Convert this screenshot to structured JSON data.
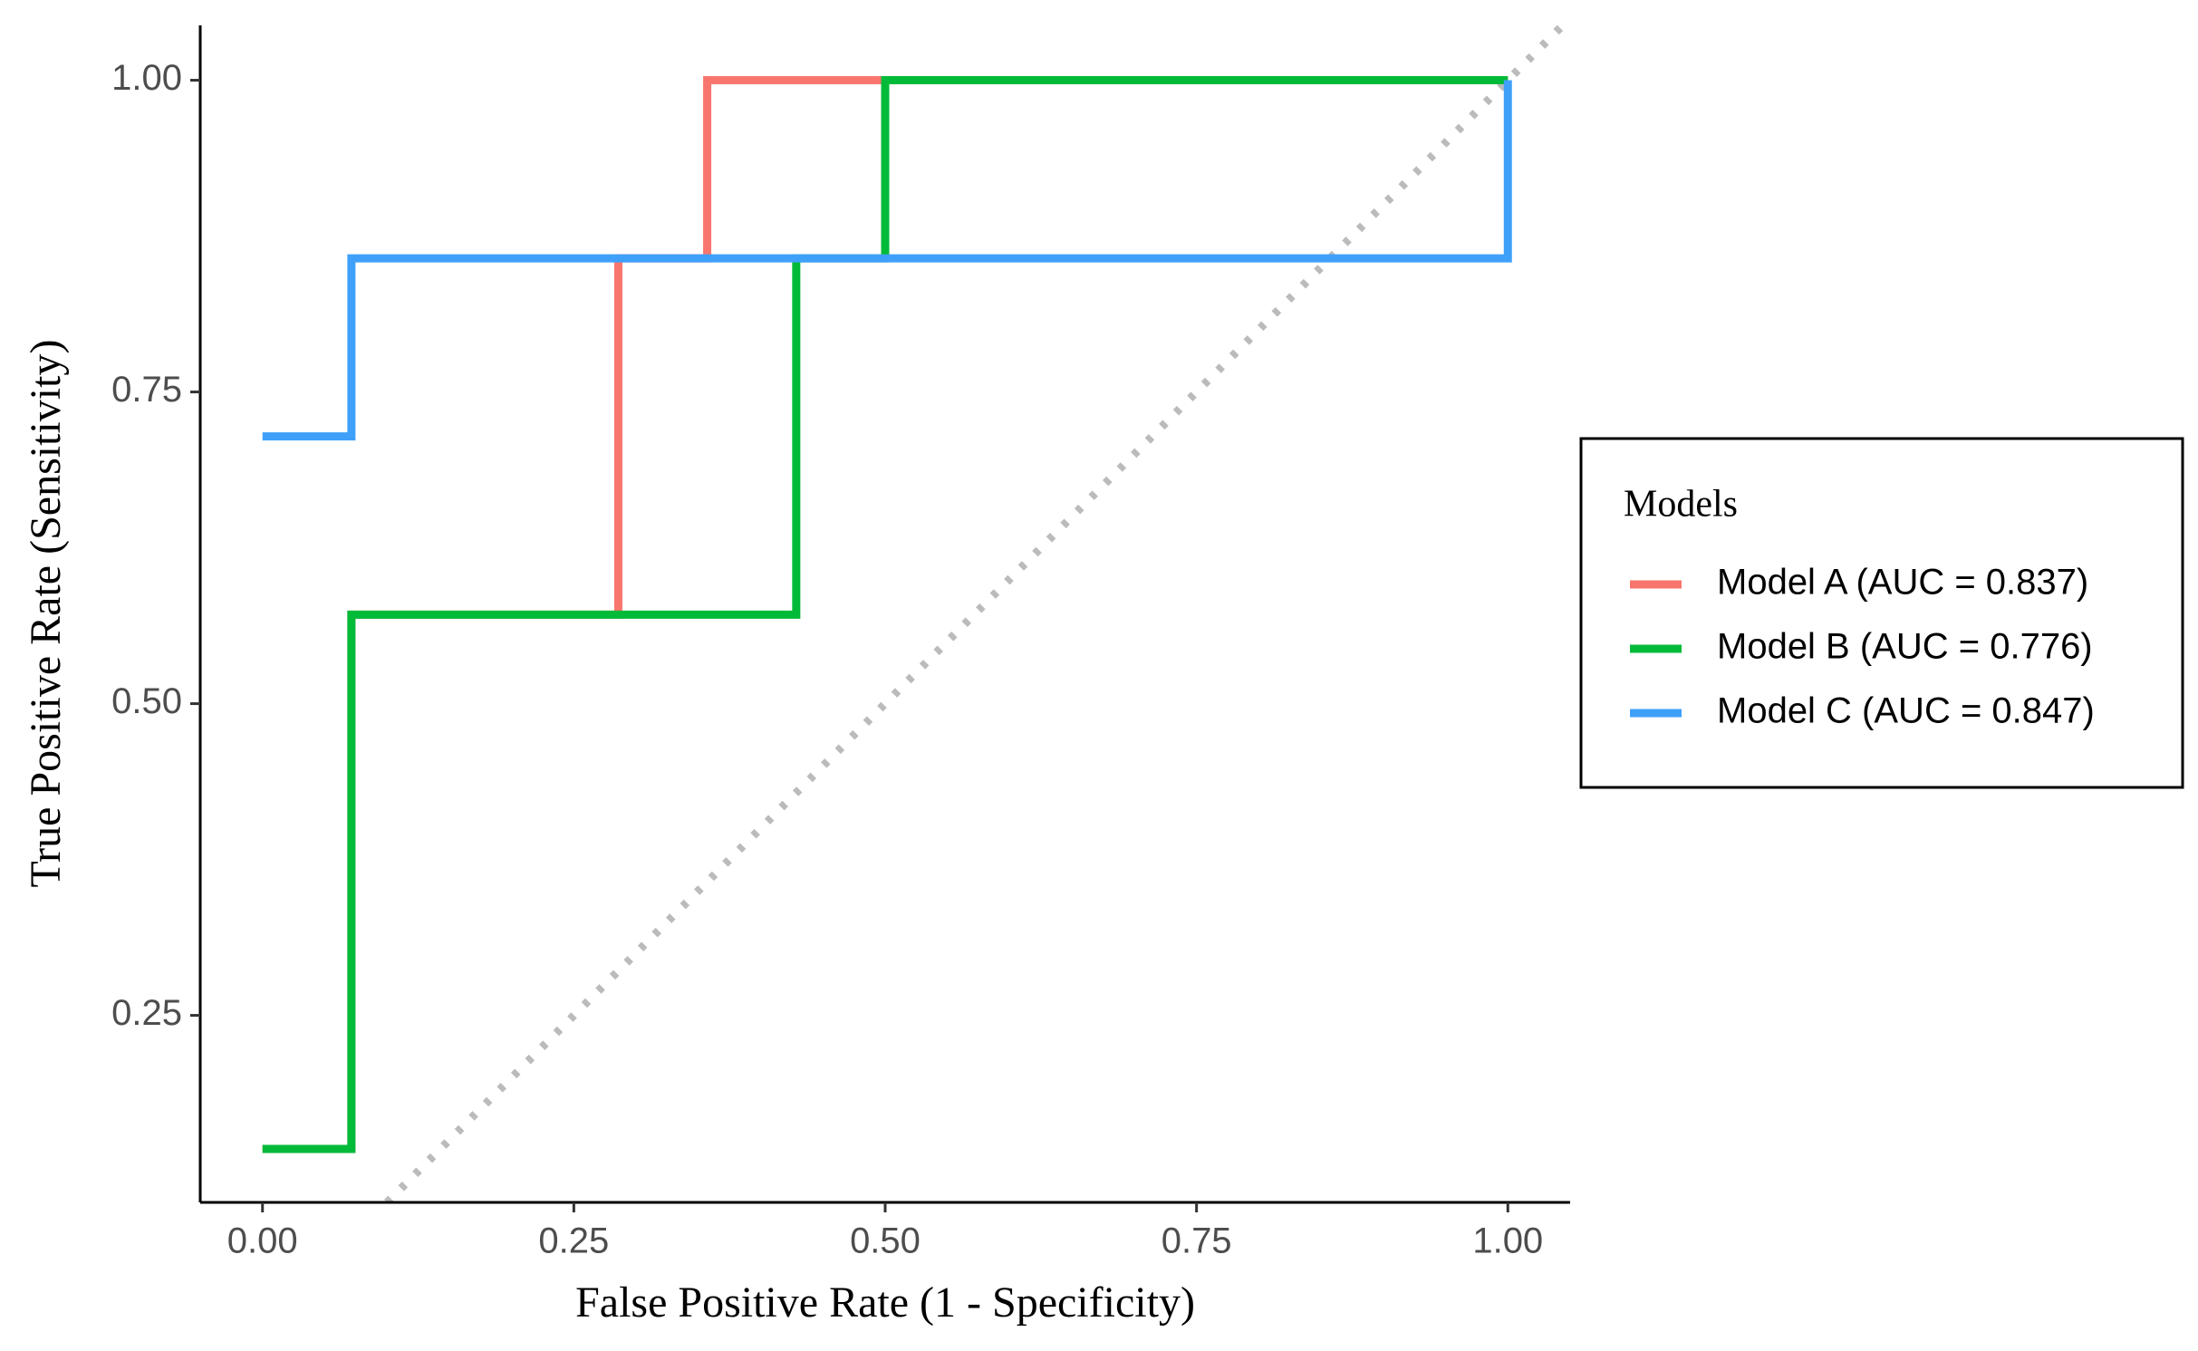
{
  "chart_data": {
    "type": "line",
    "xlabel": "False Positive Rate (1 - Specificity)",
    "ylabel": "True Positive Rate (Sensitivity)",
    "legend_title": "Models",
    "legend": "right",
    "grid": false,
    "xlim": [
      -0.05,
      1.05
    ],
    "ylim": [
      0.1,
      1.044
    ],
    "xticks": [
      {
        "value": 0,
        "label": "0.00"
      },
      {
        "value": 0.25,
        "label": "0.25"
      },
      {
        "value": 0.5,
        "label": "0.50"
      },
      {
        "value": 0.75,
        "label": "0.75"
      },
      {
        "value": 1,
        "label": "1.00"
      }
    ],
    "yticks": [
      {
        "value": 0.25,
        "label": "0.25"
      },
      {
        "value": 0.5,
        "label": "0.50"
      },
      {
        "value": 0.75,
        "label": "0.75"
      },
      {
        "value": 1,
        "label": "1.00"
      }
    ],
    "reference_line": {
      "color": "#bbbbbb",
      "style": "dotted"
    },
    "series": [
      {
        "name": "Model A (AUC = 0.837)",
        "color": "#F8766D",
        "x": [
          0,
          0.0714,
          0.0714,
          0.2857,
          0.2857,
          0.3571,
          0.3571,
          1
        ],
        "values": [
          0.1429,
          0.1429,
          0.5714,
          0.5714,
          0.8571,
          0.8571,
          1,
          1
        ]
      },
      {
        "name": "Model B (AUC = 0.776)",
        "color": "#00BA38",
        "x": [
          0,
          0.0714,
          0.0714,
          0.4286,
          0.4286,
          0.5,
          0.5,
          1
        ],
        "values": [
          0.1429,
          0.1429,
          0.5714,
          0.5714,
          0.8571,
          0.8571,
          1,
          1
        ]
      },
      {
        "name": "Model C (AUC = 0.847)",
        "color": "#3FA0FA",
        "x": [
          0,
          0.0714,
          0.0714,
          1,
          1
        ],
        "values": [
          0.7143,
          0.7143,
          0.8571,
          0.8571,
          1
        ]
      }
    ]
  }
}
